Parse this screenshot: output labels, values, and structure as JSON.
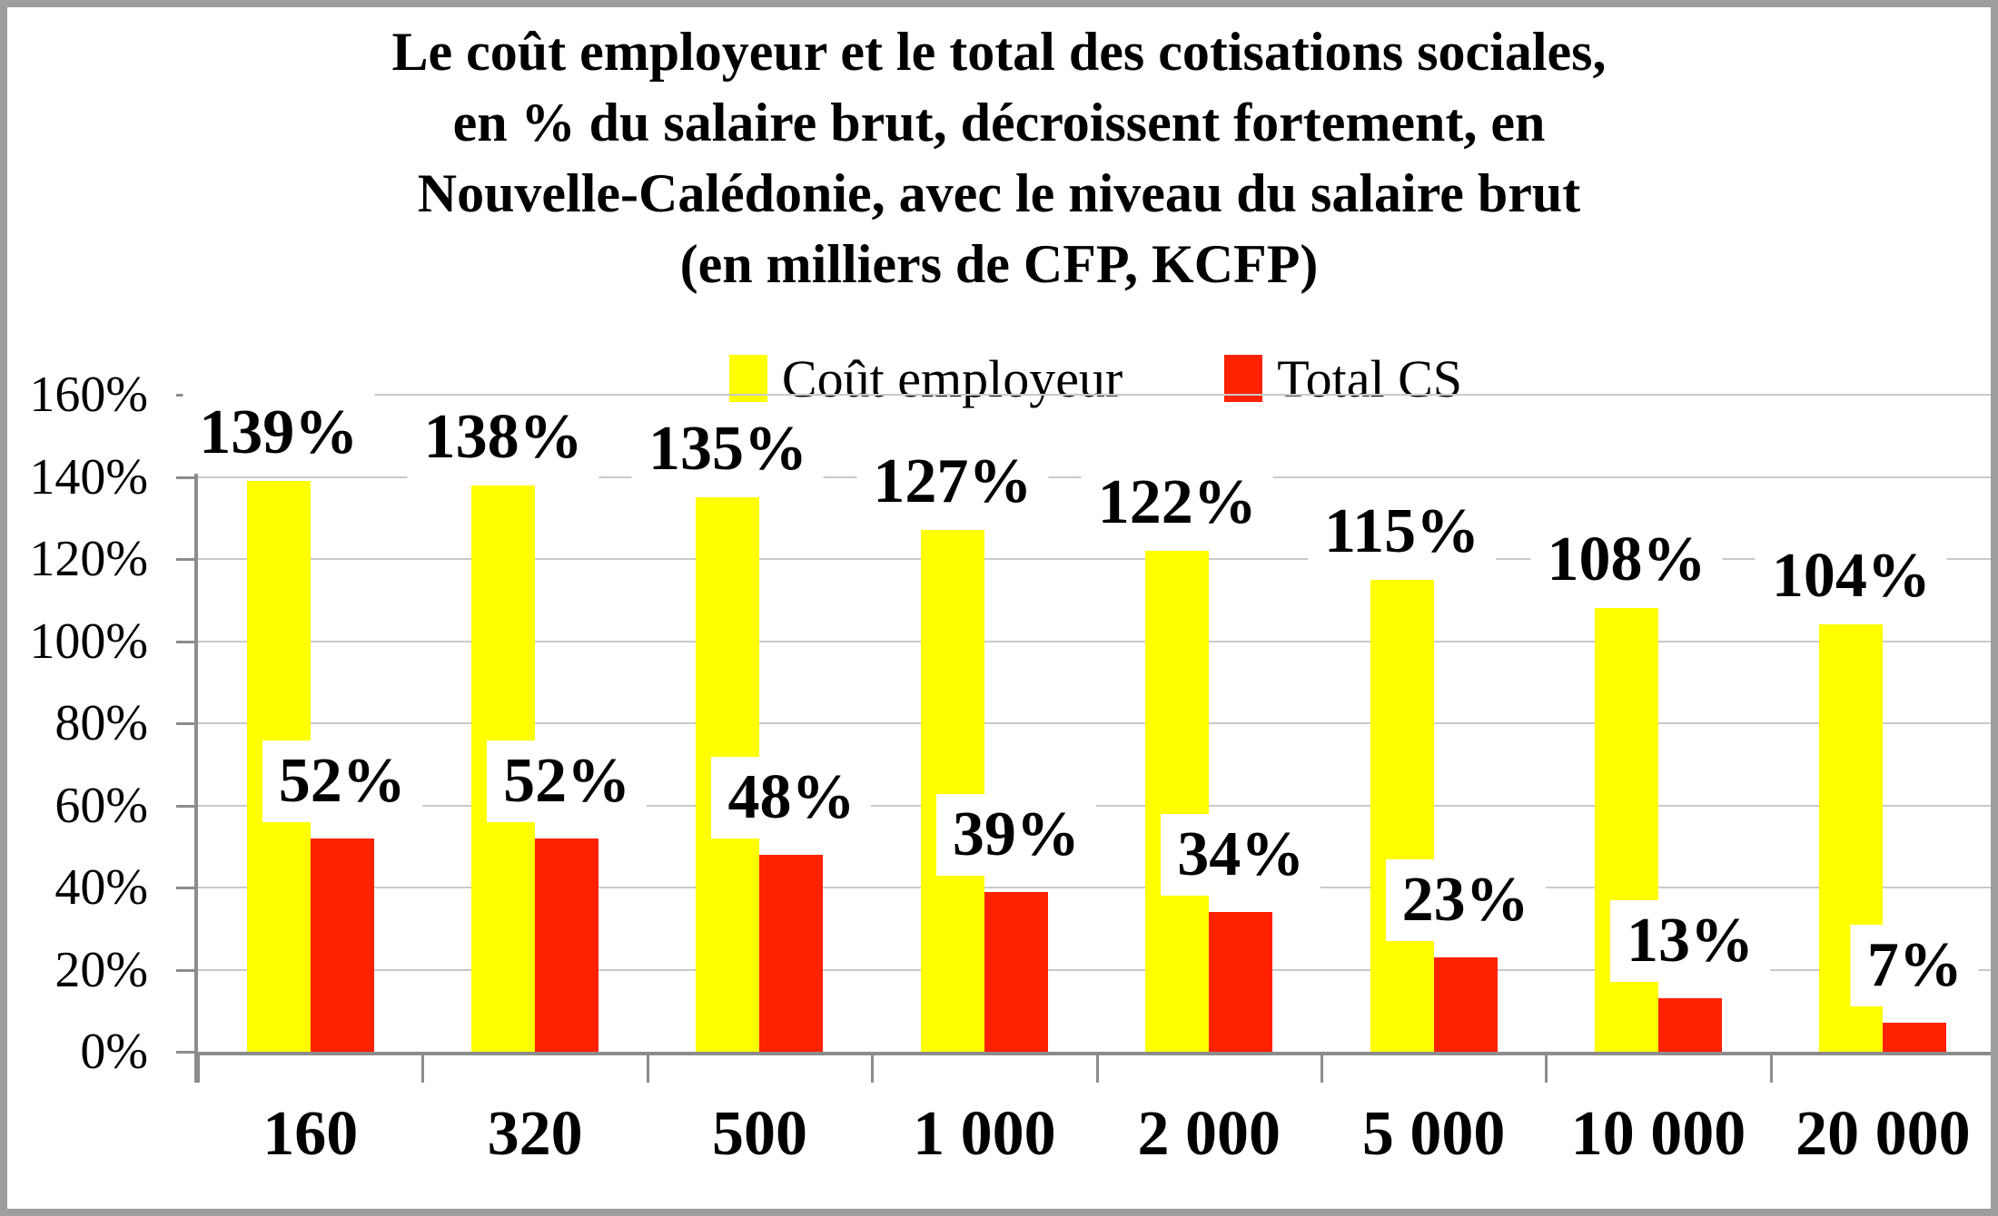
{
  "title": {
    "text": "Le coût employeur et le total des cotisations sociales,\nen % du salaire brut, décroissent fortement, en\nNouvelle-Calédonie, avec le niveau du salaire brut\n(en milliers de CFP, KCFP)"
  },
  "legend": [
    {
      "label": "Coût employeur",
      "color": "#FFFF00"
    },
    {
      "label": "Total CS",
      "color": "#FF2200"
    }
  ],
  "chart_data": {
    "type": "bar",
    "title": "Le coût employeur et le total des cotisations sociales, en % du salaire brut, décroissent fortement, en Nouvelle-Calédonie, avec le niveau du salaire brut (en milliers de CFP, KCFP)",
    "categories": [
      "160",
      "320",
      "500",
      "1 000",
      "2 000",
      "5 000",
      "10 000",
      "20 000"
    ],
    "series": [
      {
        "name": "Coût employeur",
        "color": "#FFFF00",
        "values": [
          139,
          138,
          135,
          127,
          122,
          115,
          108,
          104
        ]
      },
      {
        "name": "Total CS",
        "color": "#FF2200",
        "values": [
          52,
          52,
          48,
          39,
          34,
          23,
          13,
          7
        ]
      }
    ],
    "xlabel": "",
    "ylabel": "",
    "ylim": [
      0,
      160
    ],
    "ytick_step": 20,
    "ytick_suffix": "%",
    "data_label_suffix": "%",
    "grid": true,
    "legend_position": "top"
  },
  "style": {
    "gridline_color": "#c9c9c9",
    "axis_color": "#8c8c8c",
    "frame_color": "#9e9e9e",
    "label_box_color": "#ffffff",
    "text_color": "#000000"
  }
}
